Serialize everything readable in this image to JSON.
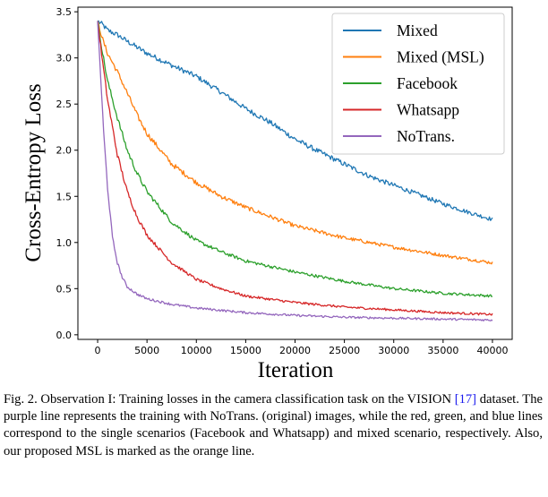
{
  "chart_data": {
    "type": "line",
    "xlabel": "Iteration",
    "ylabel": "Cross-Entropy Loss",
    "xlim": [
      -2000,
      42000
    ],
    "ylim": [
      -0.05,
      3.55
    ],
    "xticks": [
      0,
      5000,
      10000,
      15000,
      20000,
      25000,
      30000,
      35000,
      40000
    ],
    "yticks": [
      0.0,
      0.5,
      1.0,
      1.5,
      2.0,
      2.5,
      3.0,
      3.5
    ],
    "xtick_labels": [
      "0",
      "5000",
      "10000",
      "15000",
      "20000",
      "25000",
      "30000",
      "35000",
      "40000"
    ],
    "ytick_labels": [
      "0.0",
      "0.5",
      "1.0",
      "1.5",
      "2.0",
      "2.5",
      "3.0",
      "3.5"
    ],
    "grid": false,
    "legend_position": "top-right",
    "series": [
      {
        "name": "Mixed",
        "color": "#1f77b4",
        "x": [
          0,
          500,
          1000,
          2000,
          3000,
          5000,
          7500,
          10000,
          12500,
          15000,
          17500,
          20000,
          22500,
          25000,
          27500,
          30000,
          32500,
          35000,
          37500,
          40000
        ],
        "y": [
          3.4,
          3.36,
          3.3,
          3.25,
          3.18,
          3.05,
          2.92,
          2.8,
          2.63,
          2.45,
          2.3,
          2.12,
          1.98,
          1.85,
          1.72,
          1.62,
          1.52,
          1.42,
          1.33,
          1.25
        ]
      },
      {
        "name": "Mixed (MSL)",
        "color": "#ff7f0e",
        "x": [
          0,
          500,
          1000,
          2000,
          3000,
          4000,
          5000,
          7500,
          10000,
          12500,
          15000,
          17500,
          20000,
          25000,
          30000,
          35000,
          40000
        ],
        "y": [
          3.4,
          3.2,
          3.05,
          2.85,
          2.62,
          2.38,
          2.18,
          1.85,
          1.65,
          1.5,
          1.38,
          1.28,
          1.18,
          1.05,
          0.95,
          0.86,
          0.78
        ]
      },
      {
        "name": "Facebook",
        "color": "#2ca02c",
        "x": [
          0,
          500,
          1000,
          2000,
          3000,
          4000,
          5000,
          7500,
          10000,
          12500,
          15000,
          20000,
          25000,
          30000,
          35000,
          40000
        ],
        "y": [
          3.4,
          3.05,
          2.75,
          2.35,
          2.0,
          1.75,
          1.55,
          1.22,
          1.02,
          0.9,
          0.8,
          0.68,
          0.58,
          0.5,
          0.45,
          0.42
        ]
      },
      {
        "name": "Whatsapp",
        "color": "#d62728",
        "x": [
          0,
          500,
          1000,
          2000,
          3000,
          4000,
          5000,
          7500,
          10000,
          12500,
          15000,
          20000,
          25000,
          30000,
          35000,
          40000
        ],
        "y": [
          3.4,
          2.95,
          2.55,
          1.95,
          1.55,
          1.28,
          1.08,
          0.78,
          0.6,
          0.5,
          0.42,
          0.35,
          0.3,
          0.27,
          0.24,
          0.22
        ]
      },
      {
        "name": "NoTrans.",
        "color": "#9467bd",
        "x": [
          0,
          300,
          600,
          1000,
          1500,
          2000,
          2500,
          3000,
          4000,
          5000,
          7500,
          10000,
          15000,
          20000,
          25000,
          30000,
          35000,
          40000
        ],
        "y": [
          3.4,
          2.8,
          2.2,
          1.6,
          1.05,
          0.78,
          0.62,
          0.52,
          0.44,
          0.39,
          0.33,
          0.29,
          0.24,
          0.21,
          0.19,
          0.18,
          0.17,
          0.16
        ]
      }
    ]
  },
  "caption": {
    "prefix": "Fig. 2.   Observation I: Training losses in the camera classification task on the VISION ",
    "ref": "[17]",
    "suffix": " dataset. The purple line represents the training with NoTrans. (original) images, while the red, green, and blue lines correspond to the single scenarios (Facebook and Whatsapp) and mixed scenario, respectively. Also, our proposed MSL is marked as the orange line."
  }
}
